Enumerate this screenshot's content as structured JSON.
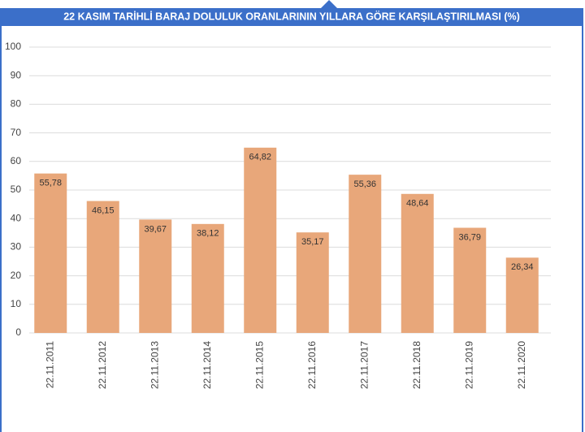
{
  "chart_data": {
    "type": "bar",
    "title": "22 KASIM TARİHLİ BARAJ DOLULUK ORANLARININ YILLARA GÖRE KARŞILAŞTIRILMASI (%)",
    "categories": [
      "22.11.2011",
      "22.11.2012",
      "22.11.2013",
      "22.11.2014",
      "22.11.2015",
      "22.11.2016",
      "22.11.2017",
      "22.11.2018",
      "22.11.2019",
      "22.11.2020"
    ],
    "values": [
      55.78,
      46.15,
      39.67,
      38.12,
      64.82,
      35.17,
      55.36,
      48.64,
      36.79,
      26.34
    ],
    "value_labels": [
      "55,78",
      "46,15",
      "39,67",
      "38,12",
      "64,82",
      "35,17",
      "55,36",
      "48,64",
      "36,79",
      "26,34"
    ],
    "color": "#e8a77a",
    "ylim": [
      0,
      100
    ],
    "yticks": [
      0,
      10,
      20,
      30,
      40,
      50,
      60,
      70,
      80,
      90,
      100
    ],
    "grid": true
  }
}
